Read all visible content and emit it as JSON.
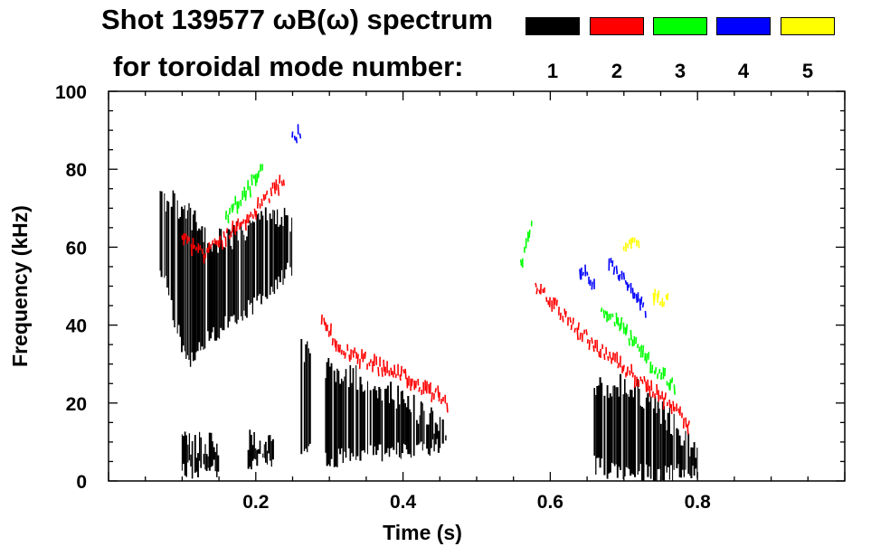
{
  "title_line_1": "Shot 139577 ωB(ω) spectrum",
  "title_line_2": "for toroidal mode number:",
  "legend": [
    {
      "label": "1",
      "color": "#000000"
    },
    {
      "label": "2",
      "color": "#ff0000"
    },
    {
      "label": "3",
      "color": "#00ff00"
    },
    {
      "label": "4",
      "color": "#0000ff"
    },
    {
      "label": "5",
      "color": "#ffff00"
    }
  ],
  "chart_data": {
    "type": "heatmap",
    "title": "Shot 139577 ωB(ω) spectrum for toroidal mode number",
    "xlabel": "Time (s)",
    "ylabel": "Frequency (kHz)",
    "xlim": [
      0.0,
      1.0
    ],
    "ylim": [
      0,
      100
    ],
    "xticks": [
      0.2,
      0.4,
      0.6,
      0.8
    ],
    "xtick_labels": [
      "0.2",
      "0.4",
      "0.6",
      "0.8"
    ],
    "yticks": [
      0,
      20,
      40,
      60,
      80,
      100
    ],
    "ytick_labels": [
      "0",
      "20",
      "40",
      "60",
      "80",
      "100"
    ],
    "grid": false,
    "series": [
      {
        "name": "n=1",
        "color": "#000000",
        "regions": [
          {
            "t": [
              0.07,
              0.25
            ],
            "f_lo": [
              56,
              30,
              38,
              42,
              48,
              55
            ],
            "f_hi": [
              72,
              68,
              60,
              62,
              66,
              66
            ]
          },
          {
            "t": [
              0.262,
              0.275
            ],
            "f_lo": [
              8,
              8
            ],
            "f_hi": [
              32,
              32
            ]
          },
          {
            "t": [
              0.295,
              0.46
            ],
            "f_lo": [
              6,
              6,
              7,
              8,
              8,
              9
            ],
            "f_hi": [
              28,
              26,
              22,
              20,
              16,
              12
            ]
          },
          {
            "t": [
              0.66,
              0.8
            ],
            "f_lo": [
              4,
              2,
              2,
              2,
              2,
              2
            ],
            "f_hi": [
              22,
              24,
              22,
              18,
              12,
              6
            ]
          },
          {
            "t": [
              0.1,
              0.15
            ],
            "f_lo": [
              3,
              3
            ],
            "f_hi": [
              8,
              8
            ]
          },
          {
            "t": [
              0.19,
              0.225
            ],
            "f_lo": [
              5,
              5
            ],
            "f_hi": [
              9,
              9
            ]
          }
        ]
      },
      {
        "name": "n=2",
        "color": "#ff0000",
        "tracks": [
          {
            "t": [
              0.1,
              0.24
            ],
            "f": [
              62,
              58,
              62,
              66,
              72,
              78
            ]
          },
          {
            "t": [
              0.29,
              0.46
            ],
            "f": [
              40,
              33,
              30,
              28,
              24,
              20
            ]
          },
          {
            "t": [
              0.58,
              0.79
            ],
            "f": [
              50,
              42,
              34,
              28,
              22,
              14
            ]
          }
        ]
      },
      {
        "name": "n=3",
        "color": "#00ff00",
        "tracks": [
          {
            "t": [
              0.16,
              0.21
            ],
            "f": [
              68,
              72,
              76,
              80
            ]
          },
          {
            "t": [
              0.56,
              0.575
            ],
            "f": [
              55,
              65
            ]
          },
          {
            "t": [
              0.67,
              0.77
            ],
            "f": [
              44,
              38,
              30,
              24
            ]
          }
        ]
      },
      {
        "name": "n=4",
        "color": "#0000ff",
        "tracks": [
          {
            "t": [
              0.25,
              0.26
            ],
            "f": [
              88,
              90
            ]
          },
          {
            "t": [
              0.68,
              0.73
            ],
            "f": [
              56,
              52,
              48,
              44
            ]
          },
          {
            "t": [
              0.64,
              0.66
            ],
            "f": [
              54,
              50
            ]
          }
        ]
      },
      {
        "name": "n=5",
        "color": "#ffff00",
        "tracks": [
          {
            "t": [
              0.7,
              0.72
            ],
            "f": [
              60,
              62
            ]
          },
          {
            "t": [
              0.74,
              0.76
            ],
            "f": [
              48,
              46
            ]
          }
        ]
      }
    ]
  }
}
